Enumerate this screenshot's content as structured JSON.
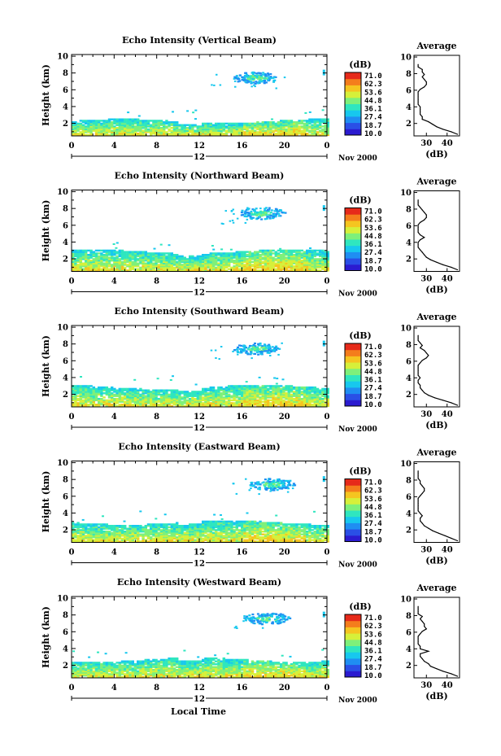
{
  "figure": {
    "x_axis_label": "Local Time",
    "date_label": "Nov 2000",
    "day_marker": "12"
  },
  "colorbar": {
    "unit": "(dB)",
    "ticks": [
      "71.0",
      "62.3",
      "53.6",
      "44.8",
      "36.1",
      "27.4",
      "18.7",
      "10.0"
    ],
    "colors": [
      "#2b1bd0",
      "#2a4fe6",
      "#1f8ef2",
      "#17c8ee",
      "#2fe6bf",
      "#7ef07a",
      "#d6f03a",
      "#f5c520",
      "#f47d1c",
      "#e62a1a"
    ]
  },
  "chart_data": [
    {
      "type": "heatmap",
      "title": "Echo Intensity (Vertical Beam)",
      "ylabel": "Height (km)",
      "xlabel": "Local Time",
      "x_ticks": [
        "0",
        "4",
        "8",
        "12",
        "16",
        "20",
        "0"
      ],
      "y_ticks": [
        "2",
        "4",
        "6",
        "8",
        "10"
      ],
      "xlim": [
        0,
        24
      ],
      "ylim": [
        0.5,
        10.2
      ],
      "description_values": {
        "boundary_layer_top_km": 2.2,
        "cloud_layer_km": [
          6.2,
          8.2
        ],
        "cloud_hours": [
          13,
          20
        ]
      },
      "profile": {
        "title": "Average",
        "xlabel": "(dB)",
        "x_ticks": [
          "30",
          "40"
        ],
        "xlim": [
          24,
          46
        ],
        "heights": [
          0.7,
          1.0,
          1.3,
          1.6,
          1.9,
          2.2,
          2.5,
          2.8,
          3.1,
          3.4,
          3.7,
          4.0,
          4.3,
          4.6,
          4.9,
          5.2,
          5.5,
          5.8,
          6.1,
          6.4,
          6.7,
          7.0,
          7.3,
          7.6,
          7.9,
          8.2,
          8.5,
          8.8,
          9.1
        ],
        "values": [
          45,
          42,
          38,
          35,
          33,
          31,
          28,
          28,
          27,
          27,
          27,
          27,
          26,
          26,
          26,
          26,
          26,
          26,
          27,
          29,
          30,
          30,
          29,
          28,
          29,
          28,
          28,
          26,
          26
        ]
      }
    },
    {
      "type": "heatmap",
      "title": "Echo Intensity (Northward Beam)",
      "ylabel": "Height (km)",
      "xlabel": "",
      "x_ticks": [
        "0",
        "4",
        "8",
        "12",
        "16",
        "20",
        "0"
      ],
      "y_ticks": [
        "2",
        "4",
        "6",
        "8",
        "10"
      ],
      "xlim": [
        0,
        24
      ],
      "ylim": [
        0.5,
        10.2
      ],
      "description_values": {
        "boundary_layer_top_km": 2.8,
        "cloud_layer_km": [
          6.2,
          8.2
        ],
        "cloud_hours": [
          14,
          20
        ]
      },
      "profile": {
        "title": "Average",
        "xlabel": "(dB)",
        "x_ticks": [
          "30",
          "40"
        ],
        "xlim": [
          24,
          46
        ],
        "heights": [
          0.7,
          1.0,
          1.3,
          1.6,
          1.9,
          2.2,
          2.5,
          2.8,
          3.1,
          3.4,
          3.7,
          4.0,
          4.3,
          4.6,
          4.9,
          5.2,
          5.5,
          5.8,
          6.1,
          6.4,
          6.7,
          7.0,
          7.3,
          7.6,
          7.9,
          8.2,
          8.5,
          8.8,
          9.1
        ],
        "values": [
          45,
          42,
          38,
          35,
          32,
          30,
          29,
          28,
          27,
          26,
          26,
          26,
          27,
          29,
          27,
          26,
          26,
          26,
          26,
          27,
          29,
          30,
          30,
          29,
          28,
          27,
          26,
          26,
          26
        ]
      }
    },
    {
      "type": "heatmap",
      "title": "Echo Intensity (Southward Beam)",
      "ylabel": "Height (km)",
      "xlabel": "",
      "x_ticks": [
        "0",
        "4",
        "8",
        "12",
        "16",
        "20",
        "0"
      ],
      "y_ticks": [
        "2",
        "4",
        "6",
        "8",
        "10"
      ],
      "xlim": [
        0,
        24
      ],
      "ylim": [
        0.5,
        10.2
      ],
      "description_values": {
        "boundary_layer_top_km": 2.8,
        "cloud_layer_km": [
          6.2,
          8.2
        ],
        "cloud_hours": [
          13,
          20
        ]
      },
      "profile": {
        "title": "Average",
        "xlabel": "(dB)",
        "x_ticks": [
          "30",
          "40"
        ],
        "xlim": [
          24,
          46
        ],
        "heights": [
          0.7,
          1.0,
          1.3,
          1.6,
          1.9,
          2.2,
          2.5,
          2.8,
          3.1,
          3.4,
          3.7,
          4.0,
          4.3,
          4.6,
          4.9,
          5.2,
          5.5,
          5.8,
          6.1,
          6.4,
          6.7,
          7.0,
          7.3,
          7.6,
          7.9,
          8.2,
          8.5,
          8.8,
          9.1
        ],
        "values": [
          45,
          42,
          38,
          34,
          31,
          29,
          28,
          27,
          27,
          26,
          26,
          27,
          26,
          26,
          26,
          26,
          26,
          27,
          28,
          30,
          31,
          30,
          29,
          27,
          28,
          27,
          26,
          26,
          26
        ]
      }
    },
    {
      "type": "heatmap",
      "title": "Echo Intensity (Eastward Beam)",
      "ylabel": "Height (km)",
      "xlabel": "",
      "x_ticks": [
        "0",
        "4",
        "8",
        "12",
        "16",
        "20",
        "0"
      ],
      "y_ticks": [
        "2",
        "4",
        "6",
        "8",
        "10"
      ],
      "xlim": [
        0,
        24
      ],
      "ylim": [
        0.5,
        10.2
      ],
      "description_values": {
        "boundary_layer_top_km": 2.8,
        "cloud_layer_km": [
          6.2,
          8.2
        ],
        "cloud_hours": [
          15,
          21
        ]
      },
      "profile": {
        "title": "Average",
        "xlabel": "(dB)",
        "x_ticks": [
          "30",
          "40"
        ],
        "xlim": [
          24,
          46
        ],
        "heights": [
          0.7,
          1.0,
          1.3,
          1.6,
          1.9,
          2.2,
          2.5,
          2.8,
          3.1,
          3.4,
          3.7,
          4.0,
          4.3,
          4.6,
          4.9,
          5.2,
          5.5,
          5.8,
          6.1,
          6.4,
          6.7,
          7.0,
          7.3,
          7.6,
          7.9,
          8.2,
          8.5,
          8.8,
          9.1
        ],
        "values": [
          45,
          42,
          39,
          36,
          33,
          31,
          29,
          28,
          27,
          27,
          28,
          27,
          26,
          26,
          26,
          26,
          26,
          26,
          27,
          28,
          29,
          29,
          28,
          27,
          27,
          26,
          26,
          26,
          26
        ]
      }
    },
    {
      "type": "heatmap",
      "title": "Echo Intensity (Westward Beam)",
      "ylabel": "Height (km)",
      "xlabel": "Local Time",
      "x_ticks": [
        "0",
        "4",
        "8",
        "12",
        "16",
        "20",
        "0"
      ],
      "y_ticks": [
        "2",
        "4",
        "6",
        "8",
        "10"
      ],
      "xlim": [
        0,
        24
      ],
      "ylim": [
        0.5,
        10.2
      ],
      "description_values": {
        "boundary_layer_top_km": 2.6,
        "cloud_layer_km": [
          6.5,
          8.2
        ],
        "cloud_hours": [
          15,
          20
        ]
      },
      "profile": {
        "title": "Average",
        "xlabel": "(dB)",
        "x_ticks": [
          "30",
          "40"
        ],
        "xlim": [
          24,
          46
        ],
        "heights": [
          0.7,
          1.0,
          1.3,
          1.6,
          1.9,
          2.2,
          2.5,
          2.8,
          3.1,
          3.4,
          3.7,
          4.0,
          4.3,
          4.6,
          4.9,
          5.2,
          5.5,
          5.8,
          6.1,
          6.4,
          6.7,
          7.0,
          7.3,
          7.6,
          7.9,
          8.2,
          8.5,
          8.8,
          9.1
        ],
        "values": [
          45,
          42,
          38,
          35,
          32,
          31,
          29,
          28,
          27,
          27,
          31,
          27,
          27,
          26,
          26,
          26,
          26,
          27,
          28,
          30,
          29,
          29,
          28,
          27,
          28,
          26,
          26,
          26,
          26
        ]
      }
    }
  ]
}
